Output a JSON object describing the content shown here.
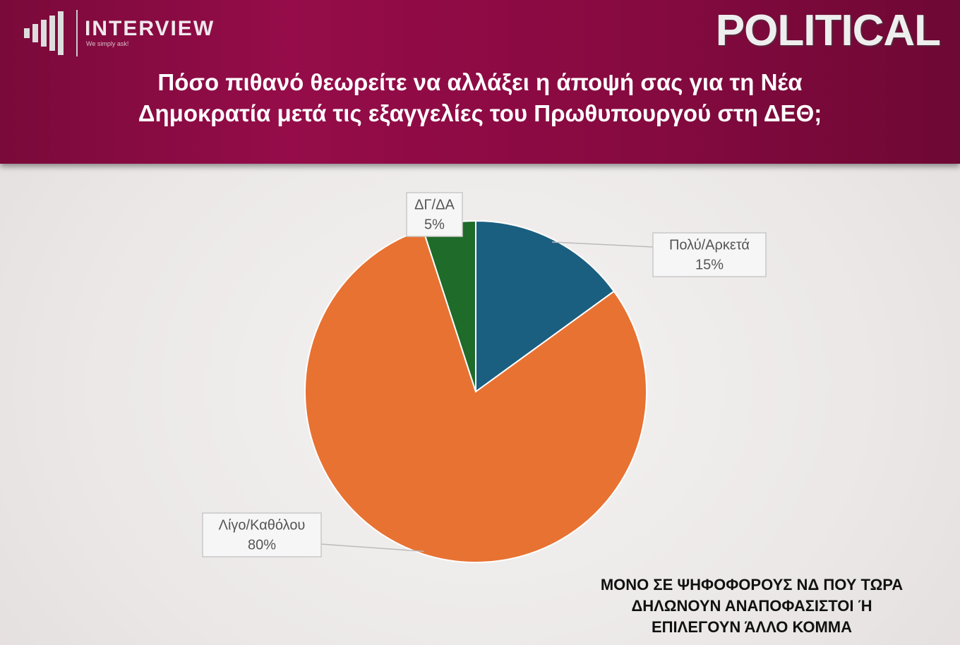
{
  "header": {
    "logo": "INTERVIEW",
    "tagline": "We simply ask!",
    "brand": "POLITICAL"
  },
  "chart_data": {
    "type": "pie",
    "title": [
      "Πόσο πιθανό θεωρείτε να αλλάξει η άποψή σας για τη Νέα",
      "Δημοκρατία μετά τις εξαγγελίες του Πρωθυπουργού στη ΔΕΘ;"
    ],
    "categories": [
      "Πολύ/Αρκετά",
      "Λίγο/Καθόλου",
      "ΔΓ/ΔΑ"
    ],
    "values": [
      15,
      80,
      5
    ],
    "value_labels": [
      "15%",
      "80%",
      "5%"
    ],
    "colors": [
      "#1a5f80",
      "#e87232",
      "#1e6b2a"
    ],
    "note": [
      "ΜΟΝΟ ΣΕ ΨΗΦΟΦΟΡΟΥΣ ΝΔ ΠΟΥ ΤΩΡΑ",
      "ΔΗΛΩΝΟΥΝ ΑΝΑΠΟΦΑΣΙΣΤΟΙ Ή",
      "ΕΠΙΛΕΓΟΥΝ ΆΛΛΟ ΚΟΜΜΑ"
    ]
  }
}
